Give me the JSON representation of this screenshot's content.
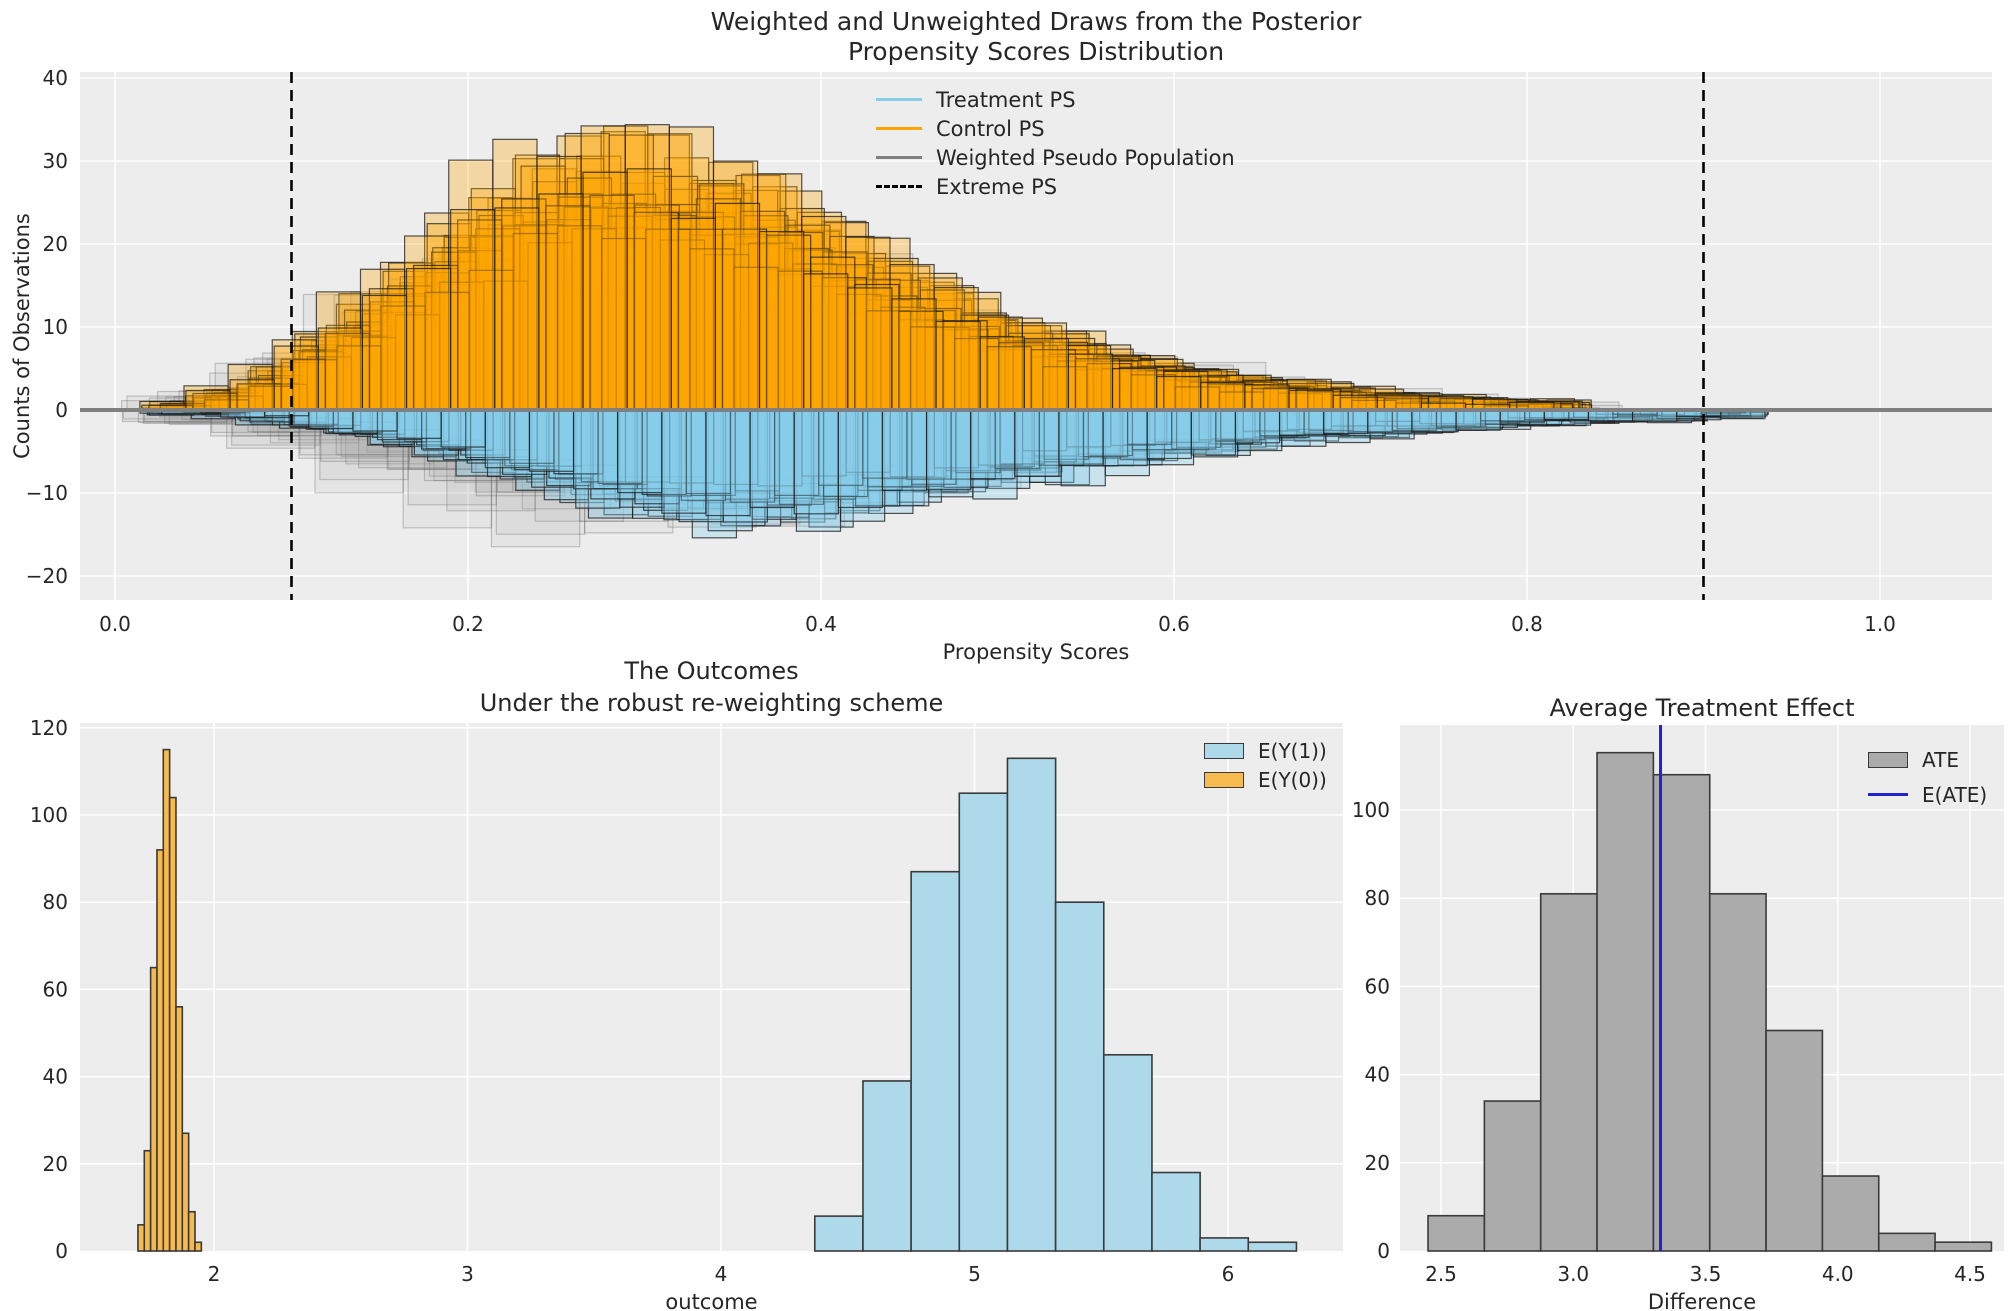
{
  "figure": {
    "background": "#ffffff",
    "axes_background": "#ededed",
    "grid_color": "#ffffff",
    "text_color": "#262626"
  },
  "ui": {
    "top": {
      "title1": "Weighted and Unweighted Draws from the Posterior",
      "title2": "Propensity Scores Distribution",
      "xlabel": "Propensity Scores",
      "ylabel": "Counts of Observations",
      "legend": [
        {
          "label": "Treatment PS",
          "swatch": "line",
          "color": "#87CEEB",
          "dashed": false
        },
        {
          "label": "Control PS",
          "swatch": "line",
          "color": "#FFA500",
          "dashed": false
        },
        {
          "label": "Weighted Pseudo Population",
          "swatch": "line",
          "color": "#808080",
          "dashed": false
        },
        {
          "label": "Extreme PS",
          "swatch": "line",
          "color": "#000000",
          "dashed": true
        }
      ]
    },
    "outcomes": {
      "title1": "The Outcomes",
      "title2": "Under the robust re-weighting scheme",
      "xlabel": "outcome",
      "legend": [
        {
          "label": "E(Y(1))",
          "swatch": "patch",
          "color": "#aed9ea",
          "dashed": false
        },
        {
          "label": "E(Y(0))",
          "swatch": "patch",
          "color": "#f7ba4d",
          "dashed": false
        }
      ]
    },
    "ate": {
      "title": "Average Treatment Effect",
      "xlabel": "Difference",
      "legend": [
        {
          "label": "ATE",
          "swatch": "patch",
          "color": "#ababab",
          "dashed": false
        },
        {
          "label": "E(ATE)",
          "swatch": "hline",
          "color": "#2222cc",
          "dashed": false
        }
      ]
    }
  },
  "chart_data": [
    {
      "type": "histogram-ensemble",
      "title": "Weighted and Unweighted Draws from the Posterior\nPropensity Scores Distribution",
      "xlabel": "Propensity Scores",
      "ylabel": "Counts of Observations",
      "xlim": [
        -0.02,
        1.06
      ],
      "ylim": [
        -22.9,
        40.7
      ],
      "grid": true,
      "legend_position": "upper center",
      "baseline": {
        "y": 0,
        "color": "#808080"
      },
      "extreme_ps_lines": [
        0.1,
        0.9
      ],
      "x_ticks": [
        {
          "v": 0.0,
          "label": "0.0"
        },
        {
          "v": 0.2,
          "label": "0.2"
        },
        {
          "v": 0.4,
          "label": "0.4"
        },
        {
          "v": 0.6,
          "label": "0.6"
        },
        {
          "v": 0.8,
          "label": "0.8"
        },
        {
          "v": 1.0,
          "label": "1.0"
        }
      ],
      "y_ticks": [
        {
          "v": -20,
          "label": "−20"
        },
        {
          "v": -10,
          "label": "−10"
        },
        {
          "v": 0,
          "label": "0"
        },
        {
          "v": 10,
          "label": "10"
        },
        {
          "v": 20,
          "label": "20"
        },
        {
          "v": 30,
          "label": "30"
        },
        {
          "v": 40,
          "label": "40"
        }
      ],
      "series": [
        {
          "name": "Weighted Pseudo Population (above axis)",
          "side": "up",
          "color": "#9a9a9a",
          "fill_alpha": 0.1,
          "edge_color": "#555555",
          "edge_alpha": 0.3,
          "bin_start": 0.025,
          "bin_width": 0.05,
          "n_draws": 10,
          "mean_counts": [
            2,
            6,
            12,
            17,
            20,
            20,
            18,
            15,
            12,
            9,
            6.5,
            4.5,
            3,
            2,
            1.3,
            0.8
          ],
          "draw_variation": {
            "amp0": 0.65,
            "ampR": 0.7,
            "jitter": 0.3,
            "add": 0.8,
            "shift": 0.03,
            "max": 29
          }
        },
        {
          "name": "Weighted Pseudo Population (below axis)",
          "side": "down",
          "color": "#9a9a9a",
          "fill_alpha": 0.1,
          "edge_color": "#555555",
          "edge_alpha": 0.3,
          "bin_start": 0.025,
          "bin_width": 0.05,
          "n_draws": 10,
          "mean_counts": [
            1.5,
            4,
            7.5,
            10.5,
            12.5,
            13,
            12.5,
            11,
            9,
            7,
            5.5,
            4,
            3,
            2.2,
            1.5,
            1
          ],
          "draw_variation": {
            "amp0": 0.65,
            "ampR": 0.7,
            "jitter": 0.3,
            "add": 0.8,
            "shift": 0.03,
            "max": 21.5
          }
        },
        {
          "name": "Control PS",
          "side": "up",
          "color": "#FFA500",
          "fill_alpha": 0.3,
          "edge_color": "#1a1a1a",
          "edge_alpha": 0.75,
          "bin_start": 0.025,
          "bin_width": 0.025,
          "n_draws": 18,
          "mean_counts": [
            0.8,
            2,
            4,
            7.5,
            11,
            15,
            19,
            23,
            26,
            28,
            28.5,
            27.5,
            26,
            24,
            21.5,
            19,
            16.5,
            14,
            11.5,
            9.5,
            8,
            6.5,
            5.4,
            4.5,
            3.7,
            3,
            2.5,
            2,
            1.6,
            1.3,
            1,
            0.8
          ],
          "draw_variation": {
            "amp0": 0.75,
            "ampR": 0.5,
            "jitter": 0.22,
            "add": 0.8,
            "shift": 0.012,
            "max": 39
          }
        },
        {
          "name": "Treatment PS",
          "side": "down",
          "color": "#87CEEB",
          "fill_alpha": 0.34,
          "edge_color": "#1a1a1a",
          "edge_alpha": 0.75,
          "bin_start": 0.025,
          "bin_width": 0.025,
          "n_draws": 18,
          "mean_counts": [
            0.2,
            0.5,
            1,
            1.6,
            2.4,
            3.3,
            4.4,
            5.6,
            6.9,
            8.2,
            9.4,
            10.3,
            10.8,
            10.8,
            10.4,
            9.8,
            9.1,
            8.3,
            7.5,
            6.7,
            6,
            5.3,
            4.7,
            4.1,
            3.6,
            3.1,
            2.7,
            2.4,
            2.1,
            1.8,
            1.5,
            1.3,
            1.1,
            0.95,
            0.8,
            0.7
          ],
          "draw_variation": {
            "amp0": 0.75,
            "ampR": 0.6,
            "jitter": 0.22,
            "add": 0.8,
            "shift": 0.012,
            "max": 17
          }
        }
      ]
    },
    {
      "type": "histogram",
      "title": "The Outcomes\nUnder the robust re-weighting scheme",
      "xlabel": "outcome",
      "ylabel": "",
      "xlim": [
        1.47,
        6.45
      ],
      "ylim": [
        0,
        121
      ],
      "grid": true,
      "legend_position": "upper right",
      "x_ticks": [
        {
          "v": 2,
          "label": "2"
        },
        {
          "v": 3,
          "label": "3"
        },
        {
          "v": 4,
          "label": "4"
        },
        {
          "v": 5,
          "label": "5"
        },
        {
          "v": 6,
          "label": "6"
        }
      ],
      "y_ticks": [
        {
          "v": 0,
          "label": "0"
        },
        {
          "v": 20,
          "label": "20"
        },
        {
          "v": 40,
          "label": "40"
        },
        {
          "v": 60,
          "label": "60"
        },
        {
          "v": 80,
          "label": "80"
        },
        {
          "v": 100,
          "label": "100"
        },
        {
          "v": 120,
          "label": "120"
        }
      ],
      "series": [
        {
          "name": "E(Y(0))",
          "color": "#f7ba4d",
          "edge_color": "#3a3a3a",
          "bin_start": 1.7,
          "bin_width": 0.025,
          "counts": [
            6,
            23,
            65,
            92,
            115,
            104,
            56,
            27,
            9,
            2
          ]
        },
        {
          "name": "E(Y(1))",
          "color": "#aed9ea",
          "edge_color": "#3a3a3a",
          "bin_start": 4.37,
          "bin_width": 0.19,
          "counts": [
            8,
            39,
            87,
            105,
            113,
            80,
            45,
            18,
            3,
            2
          ]
        }
      ]
    },
    {
      "type": "histogram",
      "title": "Average Treatment Effect",
      "xlabel": "Difference",
      "ylabel": "",
      "xlim": [
        2.34,
        4.63
      ],
      "ylim": [
        0,
        119
      ],
      "grid": true,
      "legend_position": "upper right",
      "x_ticks": [
        {
          "v": 2.5,
          "label": "2.5"
        },
        {
          "v": 3.0,
          "label": "3.0"
        },
        {
          "v": 3.5,
          "label": "3.5"
        },
        {
          "v": 4.0,
          "label": "4.0"
        },
        {
          "v": 4.5,
          "label": "4.5"
        }
      ],
      "y_ticks": [
        {
          "v": 0,
          "label": "0"
        },
        {
          "v": 20,
          "label": "20"
        },
        {
          "v": 40,
          "label": "40"
        },
        {
          "v": 60,
          "label": "60"
        },
        {
          "v": 80,
          "label": "80"
        },
        {
          "v": 100,
          "label": "100"
        }
      ],
      "series": [
        {
          "name": "ATE",
          "color": "#ababab",
          "edge_color": "#3a3a3a",
          "bin_start": 2.451,
          "bin_width": 0.213,
          "counts": [
            8,
            34,
            81,
            113,
            108,
            81,
            50,
            17,
            4,
            2
          ]
        }
      ],
      "vline": {
        "name": "E(ATE)",
        "x": 3.33,
        "color": "#2222cc"
      }
    }
  ]
}
